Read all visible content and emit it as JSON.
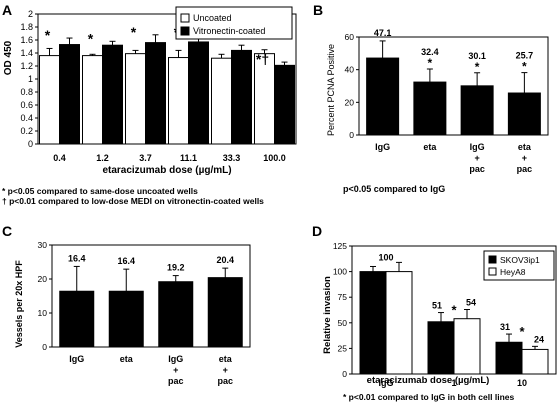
{
  "chart_data": [
    {
      "panel_label": "A",
      "type": "bar",
      "ylabel": "OD 450",
      "xlabel": "etaracizumab dose (µg/mL)",
      "ylim": [
        0,
        2
      ],
      "yticks": [
        "0",
        "0.2",
        "0.4",
        "0.6",
        "0.8",
        "1",
        "1.2",
        "1.4",
        "1.6",
        "1.8",
        "2"
      ],
      "categories": [
        "0.4",
        "1.2",
        "3.7",
        "11.1",
        "33.3",
        "100.0"
      ],
      "series": [
        {
          "name": "Uncoated",
          "color": "#ffffff",
          "values": [
            1.36,
            1.36,
            1.39,
            1.33,
            1.32,
            1.39
          ],
          "errors": [
            0.11,
            0.02,
            0.05,
            0.11,
            0.06,
            0.06
          ]
        },
        {
          "name": "Vitronectin-coated",
          "color": "#000000",
          "values": [
            1.53,
            1.52,
            1.56,
            1.57,
            1.44,
            1.21
          ],
          "errors": [
            0.1,
            0.06,
            0.12,
            0.11,
            0.08,
            0.05
          ]
        }
      ],
      "annotations": [
        {
          "category_index": 0,
          "text": "*"
        },
        {
          "category_index": 1,
          "text": "*"
        },
        {
          "category_index": 2,
          "text": "*"
        },
        {
          "category_index": 3,
          "text": "*"
        },
        {
          "category_index": 5,
          "text": "*†"
        }
      ],
      "legend_position": "top-right",
      "footnotes": [
        "*  p<0.05 compared to same-dose uncoated wells",
        "† p<0.01 compared to low-dose MEDI on vitronectin-coated wells"
      ]
    },
    {
      "panel_label": "B",
      "type": "bar",
      "ylabel": "Percent PCNA Positive",
      "ylim": [
        0,
        60
      ],
      "yticks": [
        "0",
        "20",
        "40",
        "60"
      ],
      "categories": [
        [
          "IgG"
        ],
        [
          "eta"
        ],
        [
          "IgG",
          "+",
          "pac"
        ],
        [
          "eta",
          "+",
          "pac"
        ]
      ],
      "values": [
        47.1,
        32.4,
        30.1,
        25.7
      ],
      "errors": [
        10.5,
        8.0,
        8.0,
        12.5
      ],
      "data_labels": [
        "47.1",
        "32.4",
        "30.1",
        "25.7"
      ],
      "stars": [
        "",
        "*",
        "*",
        "*"
      ],
      "footnote": "p<0.05 compared to IgG"
    },
    {
      "panel_label": "C",
      "type": "bar",
      "ylabel": "Vessels per 20x HPF",
      "ylim": [
        0,
        30
      ],
      "yticks": [
        "0",
        "10",
        "20",
        "30"
      ],
      "categories": [
        [
          "IgG"
        ],
        [
          "eta"
        ],
        [
          "IgG",
          "+",
          "pac"
        ],
        [
          "eta",
          "+",
          "pac"
        ]
      ],
      "values": [
        16.4,
        16.4,
        19.2,
        20.4
      ],
      "errors": [
        7.3,
        6.5,
        1.8,
        2.8
      ],
      "data_labels": [
        "16.4",
        "16.4",
        "19.2",
        "20.4"
      ]
    },
    {
      "panel_label": "D",
      "type": "bar",
      "ylabel": "Relative invasion",
      "xlabel": "etaracizumab dose (µg/mL)",
      "ylim": [
        0,
        125
      ],
      "yticks": [
        "0",
        "25",
        "50",
        "75",
        "100",
        "125"
      ],
      "categories": [
        "IgG",
        "1",
        "10"
      ],
      "series": [
        {
          "name": "SKOV3ip1",
          "color": "#000000",
          "values": [
            100,
            51,
            31
          ],
          "errors": [
            5,
            9,
            8
          ],
          "data_labels": [
            "",
            "51",
            "31"
          ]
        },
        {
          "name": "HeyA8",
          "color": "#ffffff",
          "values": [
            100,
            54,
            24
          ],
          "errors": [
            9,
            9,
            3
          ],
          "data_labels": [
            "",
            "54",
            "24"
          ]
        }
      ],
      "group_labels": [
        "100",
        "",
        ""
      ],
      "stars": [
        "",
        "*",
        "*"
      ],
      "legend_position": "top-right",
      "footnote": "* p<0.01 compared to IgG in both cell lines"
    }
  ]
}
